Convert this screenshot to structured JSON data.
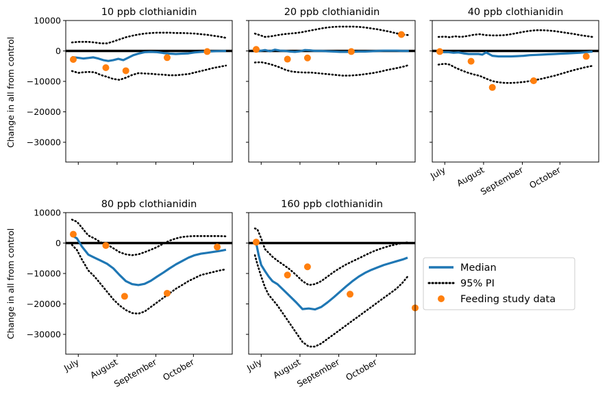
{
  "chart_data": {
    "type": "line",
    "ylabel": "Change in all from control",
    "ylim": [
      -36500,
      10000
    ],
    "yticks": [
      10000,
      0,
      -10000,
      -20000,
      -30000
    ],
    "xlim": [
      172,
      305
    ],
    "month_ticks": [
      182,
      213,
      244,
      274
    ],
    "month_labels": [
      "July",
      "August",
      "September",
      "October"
    ],
    "colors": {
      "median": "#1f77b4",
      "pi": "#000000",
      "feeding": "#ff7f0e",
      "zero": "#000000"
    },
    "legend": {
      "placement": "right of bottom row",
      "entries": [
        {
          "label": "Median",
          "style": "solid",
          "color": "#1f77b4"
        },
        {
          "label": "95% PI",
          "style": "dotted",
          "color": "#000000"
        },
        {
          "label": "Feeding study data",
          "style": "marker",
          "color": "#ff7f0e"
        }
      ]
    },
    "panels": [
      {
        "title": "10 ppb clothianidin",
        "median": {
          "x": [
            177,
            183,
            186,
            190,
            194,
            198,
            202,
            206,
            210,
            214,
            218,
            222,
            226,
            230,
            235,
            240,
            245,
            250,
            255,
            260,
            265,
            270,
            275,
            280,
            285,
            290,
            296,
            300
          ],
          "y": [
            -2000,
            -2300,
            -2500,
            -2300,
            -2100,
            -2500,
            -3000,
            -3300,
            -3000,
            -2600,
            -3000,
            -2200,
            -1400,
            -900,
            -400,
            -300,
            -400,
            -700,
            -900,
            -1000,
            -900,
            -800,
            -500,
            -300,
            -200,
            -100,
            -50,
            0
          ]
        },
        "lower": {
          "x": [
            177,
            182,
            186,
            190,
            195,
            200,
            205,
            210,
            215,
            220,
            225,
            230,
            235,
            240,
            245,
            250,
            255,
            260,
            265,
            270,
            275,
            280,
            285,
            290,
            295,
            300
          ],
          "y": [
            -6600,
            -7200,
            -7000,
            -6900,
            -7000,
            -7900,
            -8500,
            -9200,
            -9500,
            -8800,
            -7900,
            -7300,
            -7400,
            -7500,
            -7700,
            -7800,
            -8000,
            -8000,
            -7800,
            -7600,
            -7100,
            -6600,
            -6100,
            -5600,
            -5200,
            -4800
          ]
        },
        "upper": {
          "x": [
            177,
            182,
            186,
            190,
            195,
            200,
            205,
            210,
            215,
            220,
            225,
            230,
            235,
            240,
            245,
            250,
            255,
            260,
            265,
            270,
            275,
            280,
            285,
            290,
            295,
            300
          ],
          "y": [
            2800,
            3000,
            3000,
            3000,
            2800,
            2500,
            2500,
            3100,
            3800,
            4500,
            5000,
            5400,
            5700,
            5900,
            6000,
            6000,
            6000,
            5900,
            5900,
            5800,
            5700,
            5500,
            5300,
            5000,
            4700,
            4300
          ]
        },
        "feeding": {
          "x": [
            178,
            204,
            220,
            253,
            285
          ],
          "y": [
            -2800,
            -5500,
            -6500,
            -2200,
            -200
          ]
        }
      },
      {
        "title": "20 ppb clothianidin",
        "median": {
          "x": [
            177,
            181,
            185,
            189,
            193,
            197,
            201,
            205,
            209,
            213,
            217,
            221,
            225,
            230,
            235,
            240,
            245,
            250,
            255,
            260,
            265,
            270,
            275,
            280,
            285,
            290,
            295,
            300
          ],
          "y": [
            300,
            0,
            300,
            -100,
            400,
            100,
            0,
            -200,
            -300,
            -100,
            300,
            200,
            0,
            0,
            -100,
            -200,
            -300,
            -300,
            -300,
            -200,
            -200,
            -100,
            0,
            100,
            100,
            100,
            0,
            0
          ]
        },
        "lower": {
          "x": [
            177,
            182,
            187,
            192,
            197,
            202,
            207,
            212,
            217,
            222,
            227,
            232,
            237,
            242,
            247,
            252,
            257,
            262,
            267,
            272,
            277,
            282,
            287,
            292,
            297,
            300
          ],
          "y": [
            -3800,
            -3700,
            -4100,
            -4700,
            -5400,
            -6300,
            -6800,
            -7000,
            -7100,
            -7100,
            -7300,
            -7500,
            -7700,
            -7900,
            -8100,
            -8100,
            -8000,
            -7800,
            -7500,
            -7200,
            -6800,
            -6300,
            -5900,
            -5500,
            -5000,
            -4600
          ]
        },
        "upper": {
          "x": [
            177,
            181,
            185,
            190,
            195,
            200,
            205,
            210,
            215,
            220,
            225,
            230,
            235,
            240,
            245,
            250,
            255,
            260,
            265,
            270,
            275,
            280,
            285,
            290,
            295,
            300
          ],
          "y": [
            5700,
            5200,
            4600,
            4800,
            5200,
            5500,
            5700,
            5900,
            6200,
            6600,
            7000,
            7400,
            7700,
            7900,
            8000,
            8000,
            8000,
            7900,
            7700,
            7400,
            7100,
            6700,
            6300,
            5800,
            5400,
            5200
          ]
        },
        "feeding": {
          "x": [
            178,
            203,
            219,
            254,
            294
          ],
          "y": [
            500,
            -2700,
            -2300,
            -200,
            5400
          ]
        }
      },
      {
        "title": "40 ppb clothianidin",
        "median": {
          "x": [
            177,
            181,
            185,
            189,
            193,
            197,
            201,
            205,
            209,
            212,
            215,
            220,
            225,
            230,
            235,
            240,
            245,
            250,
            255,
            260,
            265,
            270,
            275,
            280,
            285,
            290,
            295,
            300
          ],
          "y": [
            -200,
            -400,
            -400,
            -600,
            -500,
            -800,
            -1000,
            -1000,
            -1000,
            -1200,
            -500,
            -1600,
            -1800,
            -1800,
            -1800,
            -1700,
            -1600,
            -1400,
            -1300,
            -1200,
            -1100,
            -1000,
            -900,
            -800,
            -700,
            -600,
            -400,
            -200
          ]
        },
        "lower": {
          "x": [
            177,
            182,
            186,
            190,
            195,
            200,
            205,
            210,
            215,
            220,
            225,
            230,
            235,
            240,
            245,
            250,
            255,
            260,
            265,
            270,
            275,
            280,
            285,
            290,
            295,
            300
          ],
          "y": [
            -4500,
            -4200,
            -4500,
            -5400,
            -6300,
            -7100,
            -7700,
            -8200,
            -9100,
            -9900,
            -10300,
            -10500,
            -10500,
            -10400,
            -10200,
            -9900,
            -9500,
            -9100,
            -8600,
            -8100,
            -7500,
            -6900,
            -6300,
            -5800,
            -5300,
            -4900
          ]
        },
        "upper": {
          "x": [
            177,
            182,
            186,
            190,
            195,
            200,
            205,
            210,
            215,
            220,
            225,
            230,
            235,
            240,
            245,
            250,
            255,
            260,
            265,
            270,
            275,
            280,
            285,
            290,
            295,
            300
          ],
          "y": [
            4600,
            4700,
            4500,
            4800,
            4600,
            4900,
            5300,
            5500,
            5200,
            5100,
            5100,
            5200,
            5500,
            5900,
            6300,
            6600,
            6800,
            6800,
            6700,
            6500,
            6200,
            5900,
            5600,
            5200,
            4900,
            4600
          ]
        },
        "feeding": {
          "x": [
            178,
            203,
            220,
            253,
            295
          ],
          "y": [
            -200,
            -3400,
            -12000,
            -9800,
            -1800
          ]
        }
      },
      {
        "title": "80 ppb clothianidin",
        "median": {
          "x": [
            177,
            181,
            185,
            190,
            195,
            200,
            205,
            210,
            215,
            220,
            225,
            230,
            235,
            240,
            245,
            250,
            255,
            260,
            265,
            270,
            275,
            280,
            285,
            290,
            295,
            300
          ],
          "y": [
            2500,
            1500,
            -1200,
            -3800,
            -4800,
            -5800,
            -6800,
            -8300,
            -10500,
            -12500,
            -13500,
            -13800,
            -13400,
            -12400,
            -11000,
            -9700,
            -8300,
            -7000,
            -5900,
            -4800,
            -4000,
            -3500,
            -3200,
            -2900,
            -2600,
            -2200
          ]
        },
        "lower": {
          "x": [
            177,
            181,
            185,
            190,
            195,
            200,
            205,
            210,
            215,
            220,
            225,
            230,
            235,
            240,
            245,
            250,
            255,
            260,
            265,
            270,
            275,
            280,
            285,
            290,
            295,
            300
          ],
          "y": [
            -600,
            -2300,
            -5500,
            -9000,
            -11000,
            -13500,
            -16000,
            -18500,
            -20500,
            -22000,
            -23000,
            -23200,
            -22500,
            -21000,
            -19500,
            -18000,
            -16500,
            -15000,
            -13800,
            -12500,
            -11500,
            -10500,
            -10000,
            -9500,
            -9000,
            -8600
          ]
        },
        "upper": {
          "x": [
            177,
            181,
            185,
            190,
            195,
            200,
            205,
            210,
            215,
            220,
            225,
            230,
            235,
            240,
            245,
            250,
            255,
            260,
            265,
            270,
            275,
            280,
            285,
            290,
            295,
            300
          ],
          "y": [
            7700,
            7000,
            5000,
            2500,
            1500,
            200,
            -500,
            -1700,
            -3000,
            -3700,
            -4000,
            -3700,
            -3000,
            -2200,
            -1300,
            -200,
            800,
            1500,
            2000,
            2200,
            2300,
            2300,
            2300,
            2300,
            2300,
            2200
          ]
        },
        "feeding": {
          "x": [
            178,
            204,
            219,
            253,
            293
          ],
          "y": [
            2900,
            -800,
            -17500,
            -16500,
            -1300
          ]
        }
      },
      {
        "title": "160 ppb clothianidin",
        "median": {
          "x": [
            178,
            180,
            182,
            185,
            188,
            191,
            195,
            200,
            205,
            210,
            215,
            220,
            225,
            230,
            235,
            240,
            245,
            250,
            255,
            260,
            265,
            270,
            275,
            280,
            285,
            290,
            295,
            299
          ],
          "y": [
            0,
            -4000,
            -7200,
            -9200,
            -11000,
            -12500,
            -13500,
            -15500,
            -17500,
            -19500,
            -21700,
            -21500,
            -21800,
            -21000,
            -19500,
            -17800,
            -16000,
            -14200,
            -12500,
            -11000,
            -9800,
            -8800,
            -8000,
            -7200,
            -6600,
            -6000,
            -5400,
            -4800
          ]
        },
        "lower": {
          "x": [
            177,
            179,
            182,
            185,
            188,
            191,
            195,
            200,
            205,
            210,
            215,
            220,
            225,
            230,
            235,
            240,
            245,
            250,
            255,
            260,
            265,
            270,
            275,
            280,
            285,
            290,
            295,
            299
          ],
          "y": [
            -4000,
            -7000,
            -11000,
            -14500,
            -17000,
            -18500,
            -20500,
            -23500,
            -26500,
            -29500,
            -32500,
            -34000,
            -34000,
            -33000,
            -31500,
            -30000,
            -28500,
            -27000,
            -25500,
            -24000,
            -22500,
            -21000,
            -19500,
            -18000,
            -16500,
            -15000,
            -13000,
            -11000
          ]
        },
        "upper": {
          "x": [
            177,
            179,
            182,
            185,
            188,
            191,
            195,
            200,
            205,
            210,
            215,
            220,
            225,
            230,
            235,
            240,
            245,
            250,
            255,
            260,
            265,
            270,
            275,
            280,
            285,
            290,
            295,
            299
          ],
          "y": [
            4800,
            4500,
            1500,
            -2000,
            -3200,
            -4500,
            -5800,
            -7200,
            -8700,
            -10500,
            -12500,
            -13800,
            -13500,
            -12500,
            -11000,
            -9500,
            -8200,
            -7000,
            -6000,
            -5000,
            -4000,
            -3000,
            -2200,
            -1500,
            -900,
            -400,
            0,
            200
          ]
        },
        "feeding": {
          "x": [
            178,
            203,
            219,
            253,
            305
          ],
          "y": [
            300,
            -10500,
            -7800,
            -16800,
            -21300
          ]
        }
      }
    ]
  }
}
